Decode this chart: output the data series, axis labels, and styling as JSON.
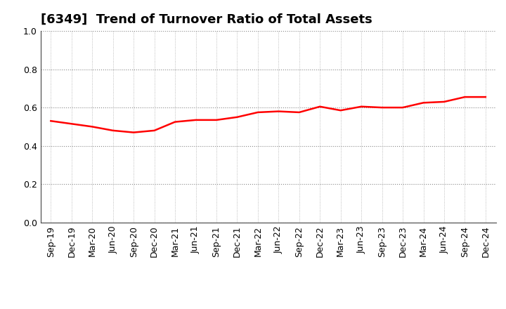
{
  "title": "[6349]  Trend of Turnover Ratio of Total Assets",
  "x_labels": [
    "Sep-19",
    "Dec-19",
    "Mar-20",
    "Jun-20",
    "Sep-20",
    "Dec-20",
    "Mar-21",
    "Jun-21",
    "Sep-21",
    "Dec-21",
    "Mar-22",
    "Jun-22",
    "Sep-22",
    "Dec-22",
    "Mar-23",
    "Jun-23",
    "Sep-23",
    "Dec-23",
    "Mar-24",
    "Jun-24",
    "Sep-24",
    "Dec-24"
  ],
  "y_values": [
    0.53,
    0.515,
    0.5,
    0.48,
    0.47,
    0.48,
    0.525,
    0.535,
    0.535,
    0.55,
    0.575,
    0.58,
    0.575,
    0.605,
    0.585,
    0.605,
    0.6,
    0.6,
    0.625,
    0.63,
    0.655,
    0.655
  ],
  "ylim": [
    0.0,
    1.0
  ],
  "yticks": [
    0.0,
    0.2,
    0.4,
    0.6,
    0.8,
    1.0
  ],
  "line_color": "#ff0000",
  "line_width": 1.8,
  "background_color": "#ffffff",
  "grid_color_h": "#888888",
  "grid_color_v": "#aaaaaa",
  "title_fontsize": 13,
  "tick_fontsize": 9
}
